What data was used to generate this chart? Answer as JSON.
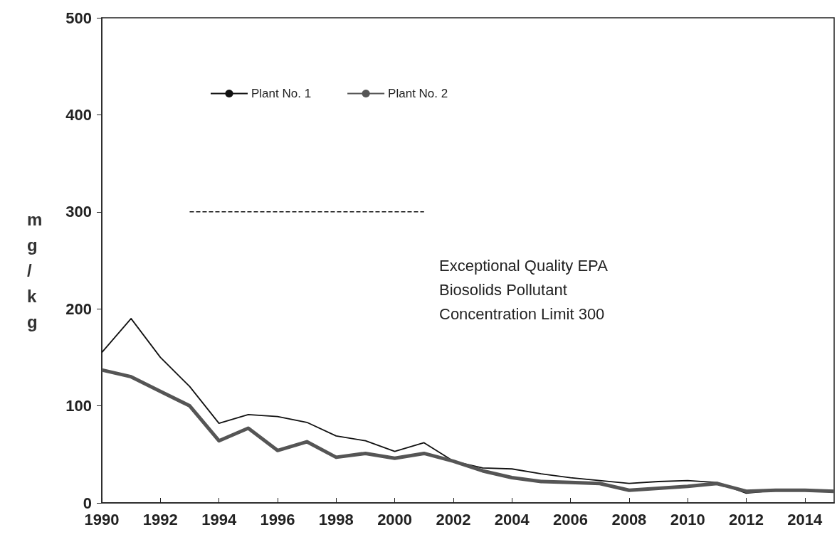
{
  "chart_data": {
    "type": "line",
    "ylabel": "mg/kg",
    "legend": "top left",
    "marker": "none",
    "grid": false,
    "x": [
      1990,
      1991,
      1992,
      1993,
      1994,
      1995,
      1996,
      1997,
      1998,
      1999,
      2000,
      2001,
      2002,
      2003,
      2004,
      2005,
      2006,
      2007,
      2008,
      2009,
      2010,
      2011,
      2012,
      2013,
      2014,
      2015
    ],
    "xlim": [
      1990,
      2015
    ],
    "xticks": [
      1990,
      1992,
      1994,
      1996,
      1998,
      2000,
      2002,
      2004,
      2006,
      2008,
      2010,
      2012,
      2014
    ],
    "ylim": [
      0,
      500
    ],
    "yticks": [
      0,
      100,
      200,
      300,
      400,
      500
    ],
    "series": [
      {
        "name": "Plant No. 1",
        "color": "#111111",
        "values": [
          155,
          190,
          150,
          120,
          82,
          91,
          89,
          83,
          69,
          64,
          53,
          62,
          43,
          36,
          35,
          30,
          26,
          23,
          20,
          22,
          23,
          21,
          10,
          13,
          13,
          12
        ]
      },
      {
        "name": "Plant No. 2",
        "color": "#555555",
        "values": [
          137,
          130,
          115,
          100,
          64,
          77,
          54,
          63,
          47,
          51,
          46,
          51,
          43,
          33,
          26,
          22,
          21,
          20,
          13,
          15,
          17,
          20,
          12,
          13,
          13,
          12
        ]
      },
      {
        "x": [
          1993,
          2001
        ],
        "values": [
          300,
          300
        ],
        "color": "#111111",
        "line_style": "dashed"
      }
    ],
    "annotations": [
      "Exceptional Quality EPA\nBiosolids Pollutant\nConcentration Limit 300"
    ]
  }
}
